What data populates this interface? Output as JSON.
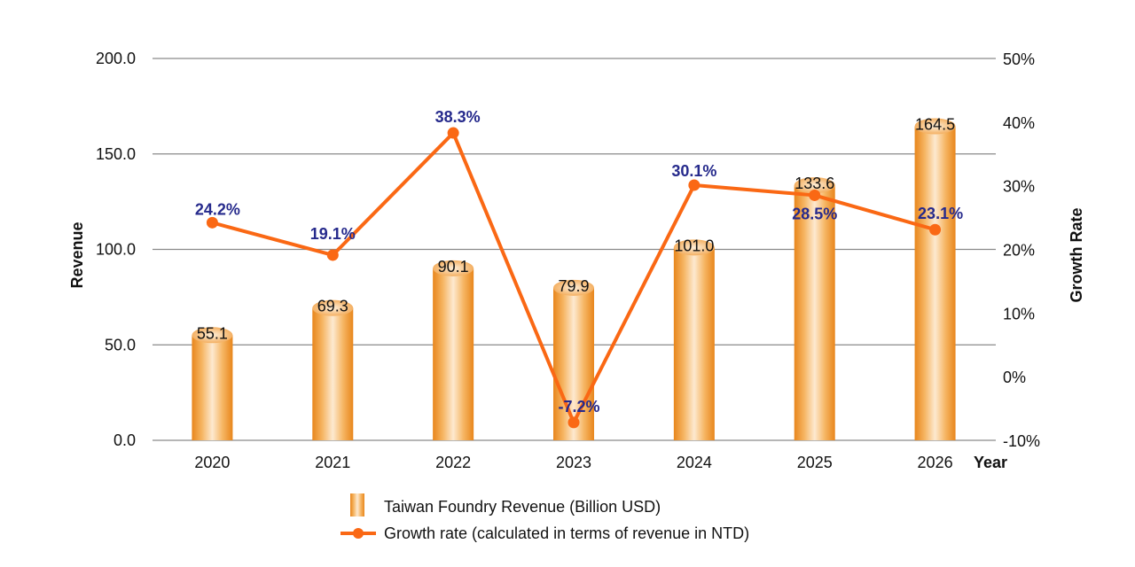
{
  "chart_data": {
    "type": "bar+line",
    "categories": [
      "2020",
      "2021",
      "2022",
      "2023",
      "2024",
      "2025",
      "2026"
    ],
    "xlabel": "Year",
    "ylabel": "Revenue",
    "y2label": "Growth Rate",
    "ylim": [
      0,
      200
    ],
    "y2lim": [
      -10,
      50
    ],
    "yticks": [
      "0.0",
      "50.0",
      "100.0",
      "150.0",
      "200.0"
    ],
    "y2ticks": [
      "-10%",
      "0%",
      "10%",
      "20%",
      "30%",
      "40%",
      "50%"
    ],
    "grid": true,
    "legend_position": "bottom",
    "series": [
      {
        "name": "Taiwan Foundry Revenue (Billion USD)",
        "kind": "bar",
        "axis": "left",
        "values": [
          55.1,
          69.3,
          90.1,
          79.9,
          101.0,
          133.6,
          164.5
        ],
        "labels": [
          "55.1",
          "69.3",
          "90.1",
          "79.9",
          "101.0",
          "133.6",
          "164.5"
        ],
        "color": "#f0a040"
      },
      {
        "name": "Growth rate (calculated in terms of revenue in NTD)",
        "kind": "line",
        "axis": "right",
        "values": [
          24.2,
          19.1,
          38.3,
          -7.2,
          30.1,
          28.5,
          23.1
        ],
        "labels": [
          "24.2%",
          "19.1%",
          "38.3%",
          "-7.2%",
          "30.1%",
          "28.5%",
          "23.1%"
        ],
        "color": "#fa6814",
        "label_color": "#262a8c"
      }
    ]
  }
}
